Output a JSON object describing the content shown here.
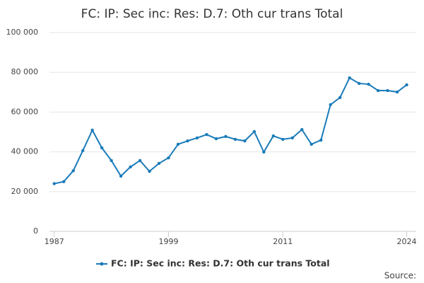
{
  "chart_data": {
    "type": "line",
    "title": "FC: IP: Sec inc: Res: D.7: Oth cur trans Total",
    "source": "Source:",
    "x": [
      1987,
      1988,
      1989,
      1990,
      1991,
      1992,
      1993,
      1994,
      1995,
      1996,
      1997,
      1998,
      1999,
      2000,
      2001,
      2002,
      2003,
      2004,
      2005,
      2006,
      2007,
      2008,
      2009,
      2010,
      2011,
      2012,
      2013,
      2014,
      2015,
      2016,
      2017,
      2018,
      2019,
      2020,
      2021,
      2022,
      2023,
      2024
    ],
    "series": [
      {
        "name": "FC: IP: Sec inc: Res: D.7: Oth cur trans Total",
        "color": "#1a7bb9",
        "values": [
          24000,
          25000,
          30500,
          40600,
          50900,
          42000,
          35600,
          27800,
          32400,
          35600,
          30200,
          34200,
          37000,
          43800,
          45500,
          47000,
          48700,
          46600,
          47700,
          46300,
          45500,
          50200,
          39900,
          48000,
          46300,
          47000,
          51200,
          43800,
          45900,
          63700,
          67300,
          77200,
          74400,
          74000,
          70800,
          70800,
          70100,
          73700
        ]
      }
    ],
    "xlim": [
      1986.5,
      2025
    ],
    "xticks": [
      1987,
      1999,
      2011,
      2024
    ],
    "ylim": [
      0,
      100000
    ],
    "yticks": [
      0,
      {
        "value": 20000,
        "label": "20 000"
      },
      {
        "value": 40000,
        "label": "40 000"
      },
      {
        "value": 60000,
        "label": "60 000"
      },
      {
        "value": 80000,
        "label": "80 000"
      },
      {
        "value": 100000,
        "label": "100 000"
      }
    ],
    "grid": true,
    "legend": "bottom"
  }
}
